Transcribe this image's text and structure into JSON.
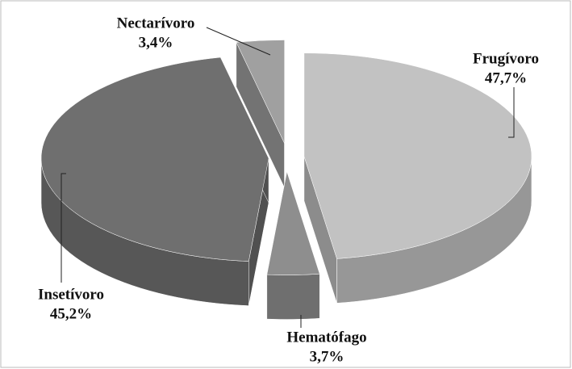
{
  "chart_data": {
    "type": "pie3d",
    "categories": [
      "Frugívoro",
      "Hematófago",
      "Insetívoro",
      "Nectarívoro"
    ],
    "values": [
      47.7,
      3.7,
      45.2,
      3.4
    ],
    "value_labels": [
      "47,7%",
      "3,7%",
      "45,2%",
      "3,4%"
    ],
    "colors": [
      "#c2c2c2",
      "#8e8e8e",
      "#6f6f6f",
      "#a0a0a0"
    ]
  }
}
